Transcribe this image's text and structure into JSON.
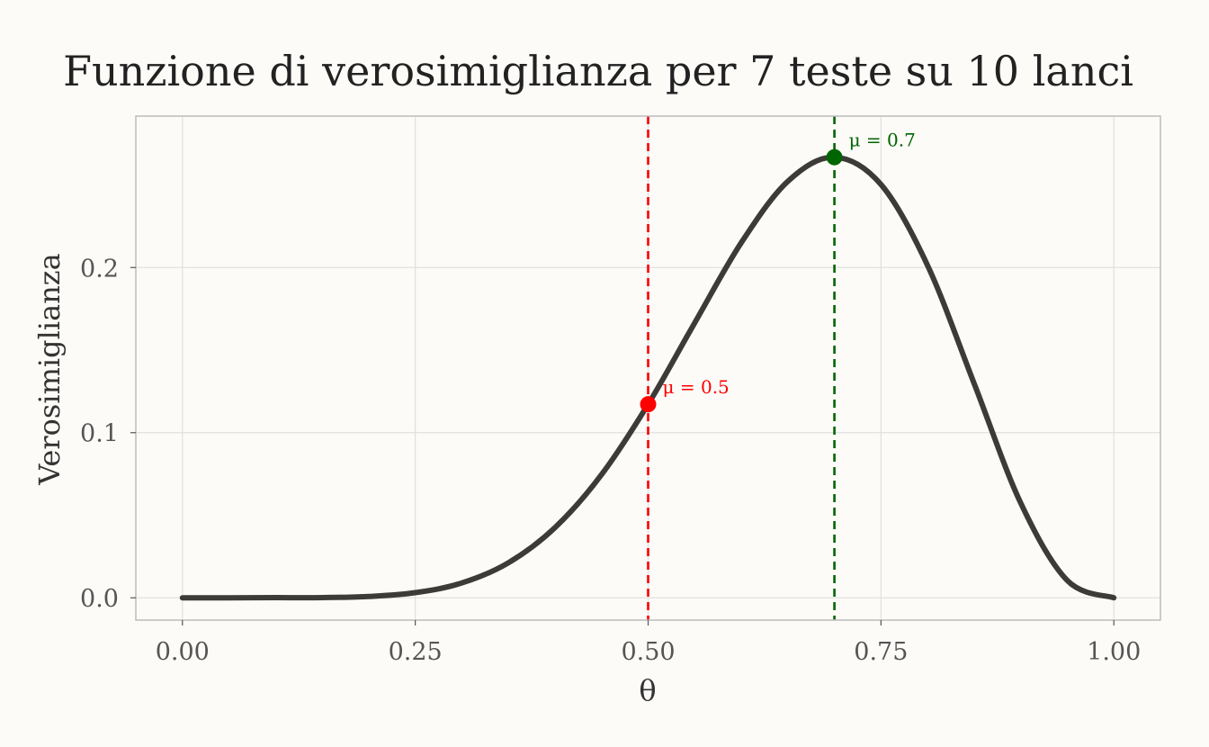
{
  "chart_data": {
    "type": "line",
    "title": "Funzione di verosimiglianza per 7 teste su 10 lanci",
    "xlabel": "θ",
    "ylabel": "Verosimiglianza",
    "xlim": [
      -0.05,
      1.05
    ],
    "ylim": [
      -0.0135,
      0.2917
    ],
    "grid": true,
    "legend": "none",
    "x_ticks": [
      {
        "value": 0.0,
        "label": "0.00"
      },
      {
        "value": 0.25,
        "label": "0.25"
      },
      {
        "value": 0.5,
        "label": "0.50"
      },
      {
        "value": 0.75,
        "label": "0.75"
      },
      {
        "value": 1.0,
        "label": "1.00"
      }
    ],
    "y_ticks": [
      {
        "value": 0.0,
        "label": "0.0"
      },
      {
        "value": 0.1,
        "label": "0.1"
      },
      {
        "value": 0.2,
        "label": "0.2"
      }
    ],
    "series": [
      {
        "color": "#3d3b38",
        "x": [
          0.0,
          0.05,
          0.1,
          0.15,
          0.2,
          0.25,
          0.3,
          0.35,
          0.4,
          0.45,
          0.5,
          0.55,
          0.6,
          0.65,
          0.7,
          0.75,
          0.8,
          0.85,
          0.9,
          0.95,
          1.0
        ],
        "y": [
          0.0,
          0.0,
          0.0001,
          0.0001,
          0.0008,
          0.0031,
          0.009,
          0.0212,
          0.0425,
          0.0746,
          0.1172,
          0.1665,
          0.215,
          0.2522,
          0.2668,
          0.2503,
          0.2013,
          0.1298,
          0.0574,
          0.0105,
          0.0
        ]
      }
    ],
    "annotations": [
      {
        "x": 0.5,
        "y": 0.1172,
        "label": "μ = 0.5",
        "color": "#ff0000"
      },
      {
        "x": 0.7,
        "y": 0.2668,
        "label": "μ = 0.7",
        "color": "#006400"
      }
    ]
  }
}
